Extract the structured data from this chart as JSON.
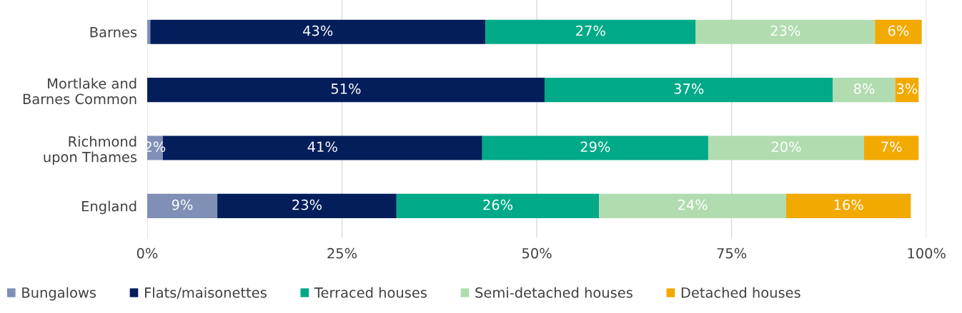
{
  "chart_data": {
    "type": "bar",
    "orientation": "horizontal",
    "stacked": true,
    "categories": [
      "Barnes",
      "Mortlake and\nBarnes Common",
      "Richmond\nupon Thames",
      "England"
    ],
    "series": [
      {
        "name": "Bungalows",
        "color": "#7f8fb6",
        "values": [
          0.4,
          null,
          2,
          9
        ],
        "value_labels": [
          null,
          null,
          "2%",
          "9%"
        ]
      },
      {
        "name": "Flats/maisonettes",
        "color": "#041e5b",
        "values": [
          43,
          51,
          41,
          23
        ],
        "value_labels": [
          "43%",
          "51%",
          "41%",
          "23%"
        ]
      },
      {
        "name": "Terraced houses",
        "color": "#00a988",
        "values": [
          27,
          37,
          29,
          26
        ],
        "value_labels": [
          "27%",
          "37%",
          "29%",
          "26%"
        ]
      },
      {
        "name": "Semi-detached houses",
        "color": "#b1dcb0",
        "values": [
          23,
          8,
          20,
          24
        ],
        "value_labels": [
          "23%",
          "8%",
          "20%",
          "24%"
        ]
      },
      {
        "name": "Detached houses",
        "color": "#f2a900",
        "values": [
          6,
          3,
          7,
          16
        ],
        "value_labels": [
          "6%",
          "3%",
          "7%",
          "16%"
        ]
      }
    ],
    "xlim": [
      0,
      100
    ],
    "xticks": [
      {
        "value": 0,
        "label": "0%"
      },
      {
        "value": 25,
        "label": "25%"
      },
      {
        "value": 50,
        "label": "50%"
      },
      {
        "value": 75,
        "label": "75%"
      },
      {
        "value": 100,
        "label": "100%"
      }
    ],
    "grid": "x",
    "legend": "bottom"
  }
}
